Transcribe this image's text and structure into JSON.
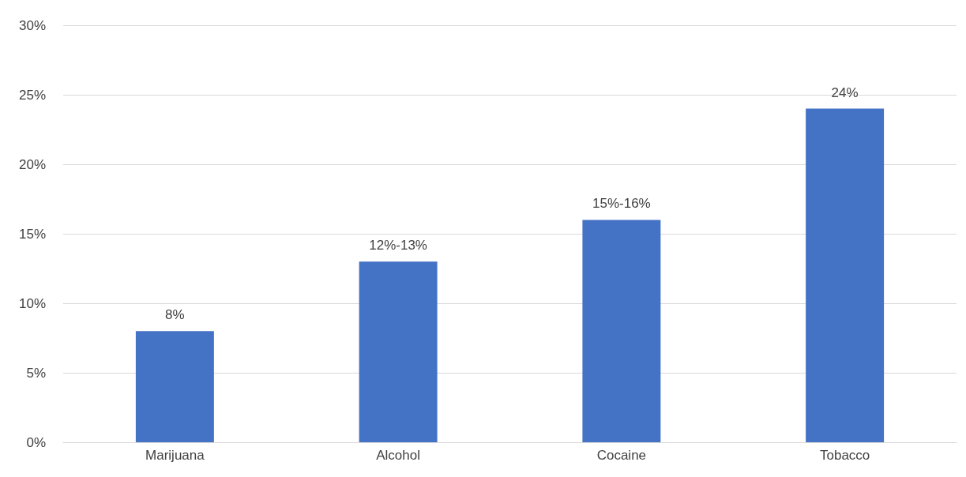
{
  "chart_data": {
    "type": "bar",
    "categories": [
      "Marijuana",
      "Alcohol",
      "Cocaine",
      "Tobacco"
    ],
    "values": [
      8,
      13,
      16,
      24
    ],
    "annotations": [
      {
        "text": "8%",
        "x": "Marijuana",
        "y": 8
      },
      {
        "text": "12%-13%",
        "x": "Alcohol",
        "y": 13
      },
      {
        "text": "15%-16%",
        "x": "Cocaine",
        "y": 16
      },
      {
        "text": "24%",
        "x": "Tobacco",
        "y": 24
      }
    ],
    "color": "#4472c4",
    "ylim": [
      0,
      30
    ],
    "yticks": [
      {
        "value": 0,
        "label": "0%"
      },
      {
        "value": 5,
        "label": "5%"
      },
      {
        "value": 10,
        "label": "10%"
      },
      {
        "value": 15,
        "label": "15%"
      },
      {
        "value": 20,
        "label": "20%"
      },
      {
        "value": 25,
        "label": "25%"
      },
      {
        "value": 30,
        "label": "30%"
      }
    ],
    "grid": "y"
  }
}
